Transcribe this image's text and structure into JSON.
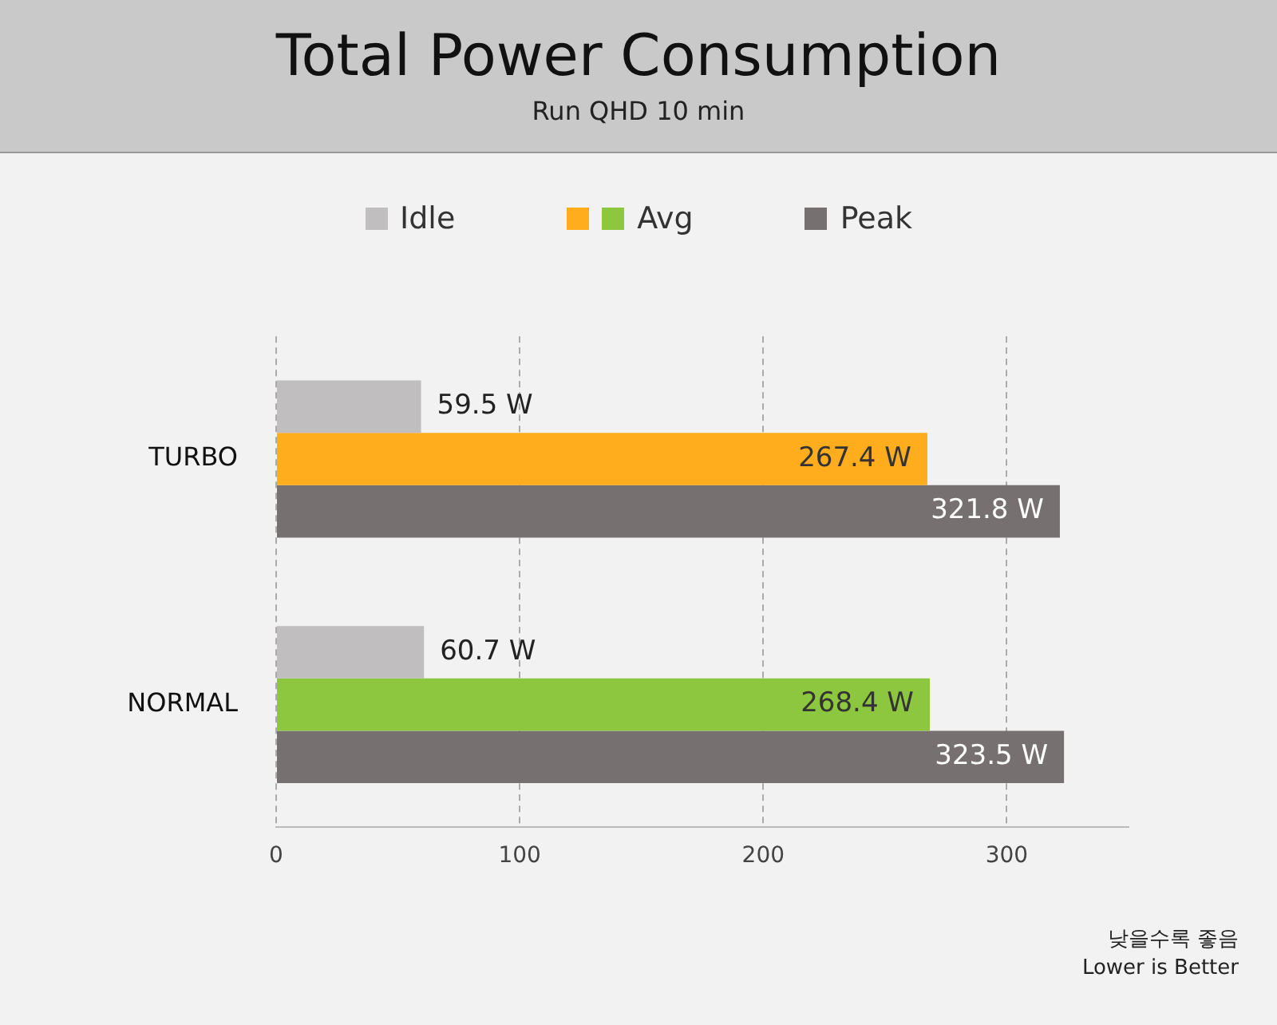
{
  "chart_data": {
    "type": "bar",
    "orientation": "horizontal",
    "title": "Total Power Consumption",
    "subtitle": "Run QHD 10 min",
    "categories": [
      "TURBO",
      "NORMAL"
    ],
    "series": [
      {
        "name": "Idle",
        "color": "#c0bebe",
        "values": [
          59.5,
          60.7
        ],
        "value_labels": [
          "59.5 W",
          "60.7 W"
        ]
      },
      {
        "name": "Avg",
        "colors": [
          "#ffad1d",
          "#8dc63f"
        ],
        "values": [
          267.4,
          268.4
        ],
        "value_labels": [
          "267.4 W",
          "268.4 W"
        ]
      },
      {
        "name": "Peak",
        "color": "#767070",
        "values": [
          321.8,
          323.5
        ],
        "value_labels": [
          "321.8 W",
          "323.5 W"
        ]
      }
    ],
    "xlim": [
      0,
      350
    ],
    "xticks": [
      0,
      100,
      200,
      300
    ],
    "grid": "x",
    "legend": "top",
    "annotations": [
      "낮을수록 좋음",
      "Lower is Better"
    ]
  }
}
